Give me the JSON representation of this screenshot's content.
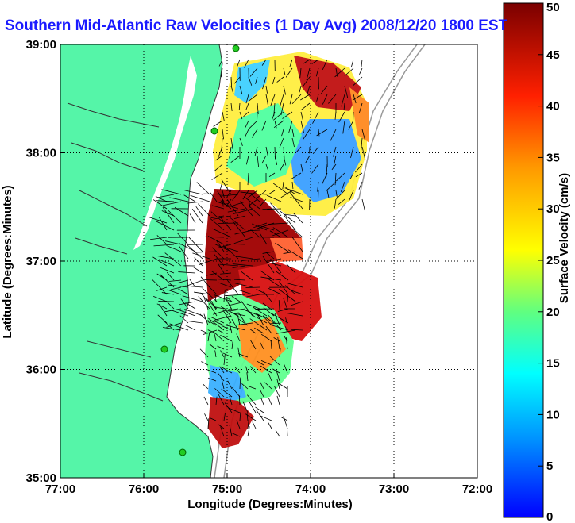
{
  "title": "Southern Mid-Atlantic Raw Velocities (1 Day Avg) 2008/12/20 1800 EST",
  "x_axis": {
    "label": "Longitude (Degrees:Minutes)",
    "ticks": [
      "77:00",
      "76:00",
      "75:00",
      "74:00",
      "73:00",
      "72:00"
    ]
  },
  "y_axis": {
    "label": "Latitude (Degrees:Minutes)",
    "ticks": [
      "39:00",
      "38:00",
      "37:00",
      "36:00",
      "35:00"
    ]
  },
  "colorbar": {
    "label": "Surface Velocity (cm/s)",
    "ticks": [
      "50",
      "45",
      "40",
      "35",
      "30",
      "25",
      "20",
      "15",
      "10",
      "5",
      "0"
    ],
    "range": [
      0,
      50
    ]
  },
  "colors": {
    "land": "#55f5a8",
    "ocean": "#ffffff",
    "title": "#1a1aff"
  }
}
